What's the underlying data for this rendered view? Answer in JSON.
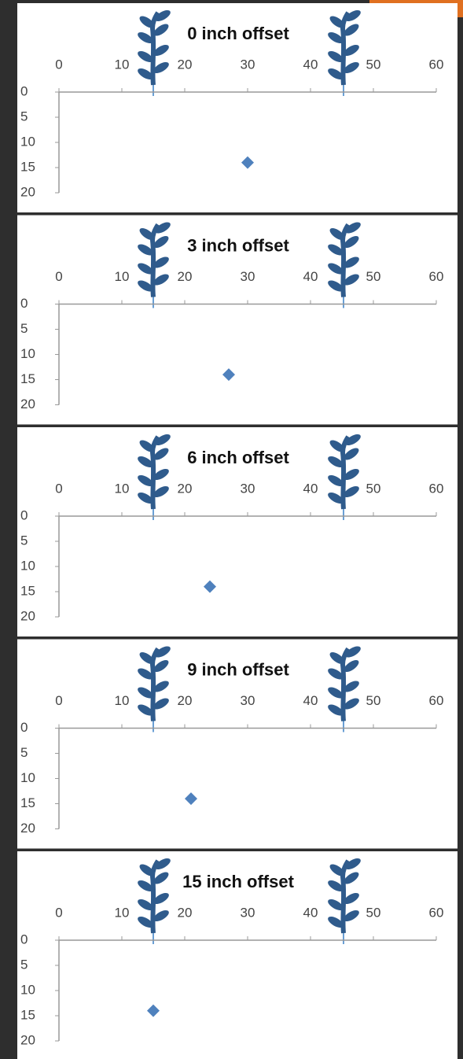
{
  "chart_data": [
    {
      "type": "scatter",
      "title": "0 inch offset",
      "x": [
        30
      ],
      "values": [
        14
      ],
      "color": "#4f81bd",
      "xlim": [
        0,
        60
      ],
      "xticks": [
        0,
        10,
        20,
        30,
        40,
        50,
        60
      ],
      "ylim": [
        0,
        20
      ],
      "yticks": [
        0,
        5,
        10,
        15,
        20
      ],
      "y_inverted": true
    },
    {
      "type": "scatter",
      "title": "3 inch offset",
      "x": [
        27
      ],
      "values": [
        14
      ],
      "color": "#4f81bd",
      "xlim": [
        0,
        60
      ],
      "xticks": [
        0,
        10,
        20,
        30,
        40,
        50,
        60
      ],
      "ylim": [
        0,
        20
      ],
      "yticks": [
        0,
        5,
        10,
        15,
        20
      ],
      "y_inverted": true
    },
    {
      "type": "scatter",
      "title": "6 inch offset",
      "x": [
        24
      ],
      "values": [
        14
      ],
      "color": "#4f81bd",
      "xlim": [
        0,
        60
      ],
      "xticks": [
        0,
        10,
        20,
        30,
        40,
        50,
        60
      ],
      "ylim": [
        0,
        20
      ],
      "yticks": [
        0,
        5,
        10,
        15,
        20
      ],
      "y_inverted": true
    },
    {
      "type": "scatter",
      "title": "9 inch offset",
      "x": [
        21
      ],
      "values": [
        14
      ],
      "color": "#4f81bd",
      "xlim": [
        0,
        60
      ],
      "xticks": [
        0,
        10,
        20,
        30,
        40,
        50,
        60
      ],
      "ylim": [
        0,
        20
      ],
      "yticks": [
        0,
        5,
        10,
        15,
        20
      ],
      "y_inverted": true
    },
    {
      "type": "scatter",
      "title": "15 inch offset",
      "x": [
        15
      ],
      "values": [
        14
      ],
      "color": "#4f81bd",
      "xlim": [
        0,
        60
      ],
      "xticks": [
        0,
        10,
        20,
        30,
        40,
        50,
        60
      ],
      "ylim": [
        0,
        20
      ],
      "yticks": [
        0,
        5,
        10,
        15,
        20
      ],
      "y_inverted": true
    }
  ]
}
